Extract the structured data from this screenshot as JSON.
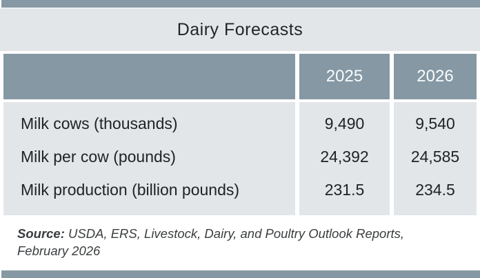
{
  "title": "Dairy Forecasts",
  "table": {
    "column_headers": [
      "2025",
      "2026"
    ],
    "rows": [
      {
        "label": "Milk cows (thousands)",
        "values": [
          "9,490",
          "9,540"
        ]
      },
      {
        "label": "Milk per cow (pounds)",
        "values": [
          "24,392",
          "24,585"
        ]
      },
      {
        "label": "Milk production (billion pounds)",
        "values": [
          "231.5",
          "234.5"
        ]
      }
    ]
  },
  "source": {
    "label": "Source:",
    "line1": "USDA, ERS, Livestock, Dairy, and Poultry Outlook Reports,",
    "line2": "February 2026"
  },
  "colors": {
    "accent_slate": "#8598a4",
    "band_gray": "#e2e6e9",
    "header_text": "#fafbfc",
    "body_text": "#202325"
  },
  "chart_data": {
    "type": "table",
    "title": "Dairy Forecasts",
    "categories": [
      "Milk cows (thousands)",
      "Milk per cow (pounds)",
      "Milk production (billion pounds)"
    ],
    "series": [
      {
        "name": "2025",
        "values": [
          9490,
          24392,
          231.5
        ]
      },
      {
        "name": "2026",
        "values": [
          9540,
          24585,
          234.5
        ]
      }
    ],
    "source": "Source: USDA, ERS, Livestock, Dairy, and Poultry Outlook Reports, February 2026"
  }
}
